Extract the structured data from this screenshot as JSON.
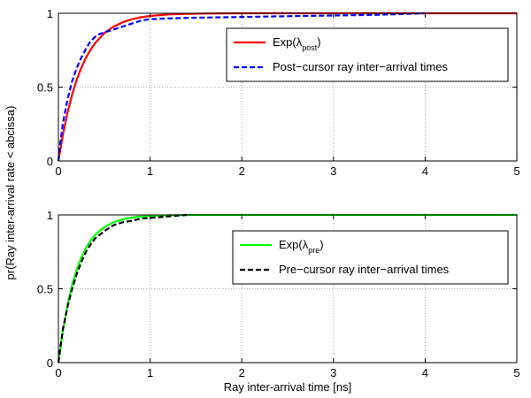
{
  "figure": {
    "ylabel": "pr(Ray inter-arrival rate < abcissa)",
    "xlabel": "Ray inter-arrival time [ns]"
  },
  "chart_data": [
    {
      "type": "line",
      "xlim": [
        0,
        5
      ],
      "ylim": [
        0,
        1
      ],
      "x_ticks": [
        "0",
        "1",
        "2",
        "3",
        "4",
        "5"
      ],
      "y_ticks": [
        "0",
        "0.5",
        "1"
      ],
      "grid": true,
      "legend_position": "top-right",
      "series": [
        {
          "legend_main": "Exp(λ",
          "legend_sub": "post",
          "legend_close": ")",
          "color": "#ff0000",
          "dash": "solid",
          "x": [
            0,
            0.05,
            0.1,
            0.15,
            0.2,
            0.25,
            0.3,
            0.35,
            0.4,
            0.5,
            0.6,
            0.7,
            0.8,
            0.9,
            1.0,
            1.2,
            1.4,
            1.6,
            2.0,
            2.5,
            3.0,
            4.0,
            5.0
          ],
          "y": [
            0,
            0.182,
            0.33,
            0.451,
            0.551,
            0.632,
            0.699,
            0.753,
            0.798,
            0.865,
            0.909,
            0.939,
            0.959,
            0.973,
            0.982,
            0.992,
            0.996,
            0.998,
            1.0,
            1.0,
            1.0,
            1.0,
            1.0
          ]
        },
        {
          "legend_main": "Post−cursor ray inter−arrival times",
          "legend_sub": "",
          "legend_close": "",
          "color": "#0000ff",
          "dash": "dashed",
          "x": [
            0,
            0.02,
            0.05,
            0.1,
            0.15,
            0.2,
            0.25,
            0.3,
            0.35,
            0.4,
            0.45,
            0.5,
            0.6,
            0.7,
            0.8,
            0.9,
            1.0,
            1.2,
            1.5,
            2.0,
            2.5,
            3.0,
            3.5,
            4.0
          ],
          "y": [
            0,
            0.12,
            0.26,
            0.42,
            0.54,
            0.63,
            0.7,
            0.76,
            0.81,
            0.84,
            0.86,
            0.87,
            0.89,
            0.91,
            0.93,
            0.95,
            0.96,
            0.965,
            0.97,
            0.975,
            0.98,
            0.985,
            0.99,
            1.0
          ]
        }
      ]
    },
    {
      "type": "line",
      "xlim": [
        0,
        5
      ],
      "ylim": [
        0,
        1
      ],
      "x_ticks": [
        "0",
        "1",
        "2",
        "3",
        "4",
        "5"
      ],
      "y_ticks": [
        "0",
        "0.5",
        "1"
      ],
      "grid": true,
      "legend_position": "top-right",
      "series": [
        {
          "legend_main": "Exp(λ",
          "legend_sub": "pre",
          "legend_close": ")",
          "color": "#00ff00",
          "dash": "solid",
          "x": [
            0,
            0.05,
            0.1,
            0.15,
            0.2,
            0.25,
            0.3,
            0.35,
            0.4,
            0.5,
            0.6,
            0.7,
            0.8,
            0.9,
            1.0,
            1.2,
            1.5,
            2.0,
            3.0,
            4.0,
            5.0
          ],
          "y": [
            0,
            0.221,
            0.393,
            0.527,
            0.632,
            0.713,
            0.777,
            0.826,
            0.865,
            0.918,
            0.95,
            0.97,
            0.982,
            0.989,
            0.993,
            0.998,
            1.0,
            1.0,
            1.0,
            1.0,
            1.0
          ]
        },
        {
          "legend_main": "Pre−cursor ray inter−arrival times",
          "legend_sub": "",
          "legend_close": "",
          "color": "#000000",
          "dash": "dashed",
          "x": [
            0,
            0.02,
            0.05,
            0.1,
            0.15,
            0.2,
            0.25,
            0.3,
            0.35,
            0.4,
            0.5,
            0.6,
            0.7,
            0.8,
            0.9,
            1.0,
            1.1,
            1.2,
            1.3,
            1.4
          ],
          "y": [
            0,
            0.1,
            0.23,
            0.38,
            0.5,
            0.6,
            0.68,
            0.75,
            0.8,
            0.84,
            0.89,
            0.93,
            0.95,
            0.96,
            0.975,
            0.98,
            0.985,
            0.99,
            0.995,
            1.0
          ]
        }
      ]
    }
  ]
}
